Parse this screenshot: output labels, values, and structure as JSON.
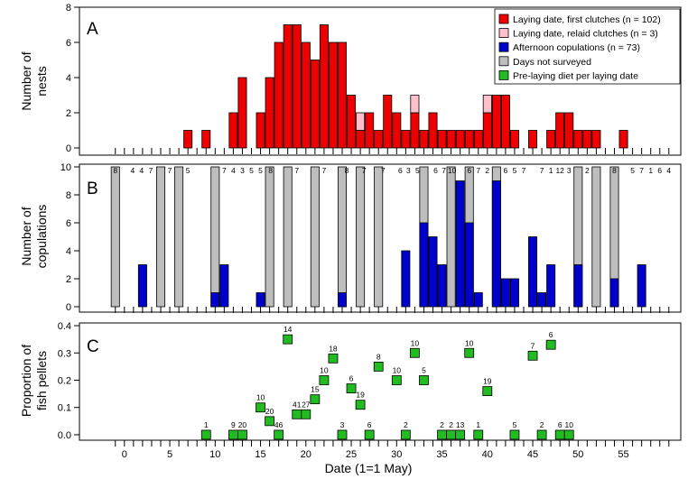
{
  "figure": {
    "xlabel": "Date (1=1 May)"
  },
  "chart_data": [
    {
      "type": "bar",
      "panel_letter": "A",
      "ylabel": [
        "Number of",
        "nests"
      ],
      "ylim": [
        0,
        8
      ],
      "yticks": [
        0,
        2,
        4,
        6,
        8
      ],
      "legend": {
        "placement": "top-right",
        "entries": [
          {
            "label": "Laying date, first clutches (n = 102)",
            "color": "#ee0000"
          },
          {
            "label": "Laying date, relaid clutches (n = 3)",
            "color": "#ffc0cb"
          },
          {
            "label": "Afternoon copulations (n = 73)",
            "color": "#0000cc"
          },
          {
            "label": "Days not surveyed",
            "color": "#bebebe"
          },
          {
            "label": "Pre-laying diet per laying date",
            "color": "#22bb22"
          }
        ]
      },
      "series": [
        {
          "name": "Laying date, first clutches (n = 102)",
          "color": "#ee0000",
          "points": [
            [
              7,
              1
            ],
            [
              9,
              1
            ],
            [
              12,
              2
            ],
            [
              13,
              4
            ],
            [
              15,
              2
            ],
            [
              16,
              4
            ],
            [
              17,
              6
            ],
            [
              18,
              7
            ],
            [
              19,
              7
            ],
            [
              20,
              6
            ],
            [
              21,
              5
            ],
            [
              22,
              7
            ],
            [
              23,
              6
            ],
            [
              24,
              6
            ],
            [
              25,
              3
            ],
            [
              26,
              1
            ],
            [
              27,
              2
            ],
            [
              28,
              1
            ],
            [
              29,
              3
            ],
            [
              30,
              2
            ],
            [
              31,
              1
            ],
            [
              32,
              2
            ],
            [
              33,
              1
            ],
            [
              34,
              2
            ],
            [
              35,
              1
            ],
            [
              36,
              1
            ],
            [
              37,
              1
            ],
            [
              38,
              1
            ],
            [
              39,
              1
            ],
            [
              40,
              2
            ],
            [
              41,
              3
            ],
            [
              42,
              3
            ],
            [
              43,
              1
            ],
            [
              45,
              1
            ],
            [
              47,
              1
            ],
            [
              48,
              2
            ],
            [
              49,
              2
            ],
            [
              50,
              1
            ],
            [
              51,
              1
            ],
            [
              52,
              1
            ],
            [
              55,
              1
            ]
          ]
        },
        {
          "name": "Laying date, relaid clutches (n = 3)",
          "color": "#ffc0cb",
          "points": [
            [
              26,
              1
            ],
            [
              32,
              1
            ],
            [
              40,
              1
            ]
          ]
        }
      ]
    },
    {
      "type": "bar",
      "panel_letter": "B",
      "ylabel": [
        "Number of",
        "copulations"
      ],
      "ylim": [
        0,
        10
      ],
      "yticks": [
        0,
        2,
        4,
        6,
        8,
        10
      ],
      "series": [
        {
          "name": "Afternoon copulations (n = 73)",
          "color": "#0000cc",
          "points": [
            [
              2,
              3
            ],
            [
              10,
              1
            ],
            [
              11,
              3
            ],
            [
              15,
              1
            ],
            [
              24,
              1
            ],
            [
              31,
              4
            ],
            [
              33,
              6
            ],
            [
              34,
              5
            ],
            [
              35,
              3
            ],
            [
              37,
              9
            ],
            [
              38,
              6
            ],
            [
              39,
              1
            ],
            [
              41,
              9
            ],
            [
              42,
              2
            ],
            [
              43,
              2
            ],
            [
              45,
              5
            ],
            [
              46,
              1
            ],
            [
              47,
              3
            ],
            [
              50,
              3
            ],
            [
              54,
              2
            ],
            [
              57,
              3
            ]
          ]
        },
        {
          "name": "Days not surveyed",
          "color": "#bebebe",
          "points": [
            [
              -1,
              10
            ],
            [
              4,
              10
            ],
            [
              6,
              10
            ],
            [
              10,
              10
            ],
            [
              16,
              10
            ],
            [
              18,
              10
            ],
            [
              21,
              10
            ],
            [
              24,
              10
            ],
            [
              26,
              10
            ],
            [
              28,
              10
            ],
            [
              33,
              10
            ],
            [
              36,
              10
            ],
            [
              38,
              10
            ],
            [
              41,
              10
            ],
            [
              50,
              10
            ],
            [
              52,
              10
            ],
            [
              54,
              10
            ]
          ]
        }
      ],
      "top_labels": [
        {
          "x": -1,
          "text": "8"
        },
        {
          "x": 0.9,
          "text": "4"
        },
        {
          "x": 1.9,
          "text": "4"
        },
        {
          "x": 2.9,
          "text": "7"
        },
        {
          "x": 5,
          "text": "7"
        },
        {
          "x": 7,
          "text": "5"
        },
        {
          "x": 11,
          "text": "7"
        },
        {
          "x": 12,
          "text": "4"
        },
        {
          "x": 13,
          "text": "3"
        },
        {
          "x": 14,
          "text": "5"
        },
        {
          "x": 15,
          "text": "5"
        },
        {
          "x": 16.1,
          "text": "8"
        },
        {
          "x": 19,
          "text": "7"
        },
        {
          "x": 22,
          "text": "7"
        },
        {
          "x": 24.5,
          "text": "8"
        },
        {
          "x": 26.4,
          "text": "7"
        },
        {
          "x": 28.5,
          "text": "7"
        },
        {
          "x": 30.4,
          "text": "6"
        },
        {
          "x": 31.3,
          "text": "3"
        },
        {
          "x": 32.3,
          "text": "5"
        },
        {
          "x": 34.3,
          "text": "6"
        },
        {
          "x": 35.2,
          "text": "7"
        },
        {
          "x": 36.1,
          "text": "10"
        },
        {
          "x": 38,
          "text": "6"
        },
        {
          "x": 39,
          "text": "7"
        },
        {
          "x": 40,
          "text": "2"
        },
        {
          "x": 42,
          "text": "6"
        },
        {
          "x": 43,
          "text": "5"
        },
        {
          "x": 44,
          "text": "7"
        },
        {
          "x": 46,
          "text": "7"
        },
        {
          "x": 47,
          "text": "1"
        },
        {
          "x": 48,
          "text": "12"
        },
        {
          "x": 49,
          "text": "3"
        },
        {
          "x": 51,
          "text": "2"
        },
        {
          "x": 54,
          "text": "8"
        },
        {
          "x": 56,
          "text": "5"
        },
        {
          "x": 57,
          "text": "7"
        },
        {
          "x": 58,
          "text": "1"
        },
        {
          "x": 59,
          "text": "6"
        },
        {
          "x": 60,
          "text": "4"
        }
      ]
    },
    {
      "type": "scatter",
      "panel_letter": "C",
      "ylabel": [
        "Proportion of",
        "fish pellets"
      ],
      "ylim": [
        -0.02,
        0.41
      ],
      "yticks": [
        0.0,
        0.1,
        0.2,
        0.3,
        0.4
      ],
      "xlim": [
        -4.5,
        57.8
      ],
      "xticks": [
        0,
        5,
        10,
        15,
        20,
        25,
        30,
        35,
        40,
        45,
        50,
        55
      ],
      "series": [
        {
          "name": "Pre-laying diet per laying date",
          "color": "#22bb22",
          "points": [
            {
              "x": 9,
              "y": 0.0,
              "n": "1"
            },
            {
              "x": 12,
              "y": 0.0,
              "n": "9"
            },
            {
              "x": 13,
              "y": 0.0,
              "n": "20"
            },
            {
              "x": 15,
              "y": 0.1,
              "n": "10"
            },
            {
              "x": 16,
              "y": 0.05,
              "n": "20"
            },
            {
              "x": 17,
              "y": 0.0,
              "n": "46"
            },
            {
              "x": 18,
              "y": 0.35,
              "n": "14"
            },
            {
              "x": 19,
              "y": 0.075,
              "n": "41"
            },
            {
              "x": 20,
              "y": 0.075,
              "n": "27"
            },
            {
              "x": 21,
              "y": 0.13,
              "n": "15"
            },
            {
              "x": 22,
              "y": 0.2,
              "n": "10"
            },
            {
              "x": 23,
              "y": 0.28,
              "n": "18"
            },
            {
              "x": 24,
              "y": 0.0,
              "n": "3"
            },
            {
              "x": 25,
              "y": 0.17,
              "n": "6"
            },
            {
              "x": 26,
              "y": 0.11,
              "n": "19"
            },
            {
              "x": 27,
              "y": 0.0,
              "n": "6"
            },
            {
              "x": 28,
              "y": 0.25,
              "n": "8"
            },
            {
              "x": 30,
              "y": 0.2,
              "n": "10"
            },
            {
              "x": 31,
              "y": 0.0,
              "n": "2"
            },
            {
              "x": 32,
              "y": 0.3,
              "n": "10"
            },
            {
              "x": 33,
              "y": 0.2,
              "n": "5"
            },
            {
              "x": 35,
              "y": 0.0,
              "n": "2"
            },
            {
              "x": 36,
              "y": 0.0,
              "n": "2"
            },
            {
              "x": 37,
              "y": 0.0,
              "n": "13"
            },
            {
              "x": 38,
              "y": 0.3,
              "n": "10"
            },
            {
              "x": 39,
              "y": 0.0,
              "n": "1"
            },
            {
              "x": 40,
              "y": 0.16,
              "n": "19"
            },
            {
              "x": 43,
              "y": 0.0,
              "n": "5"
            },
            {
              "x": 45,
              "y": 0.29,
              "n": "7"
            },
            {
              "x": 46,
              "y": 0.0,
              "n": "2"
            },
            {
              "x": 47,
              "y": 0.33,
              "n": "6"
            },
            {
              "x": 48,
              "y": 0.0,
              "n": "6"
            },
            {
              "x": 49,
              "y": 0.0,
              "n": "10"
            }
          ]
        }
      ]
    }
  ]
}
